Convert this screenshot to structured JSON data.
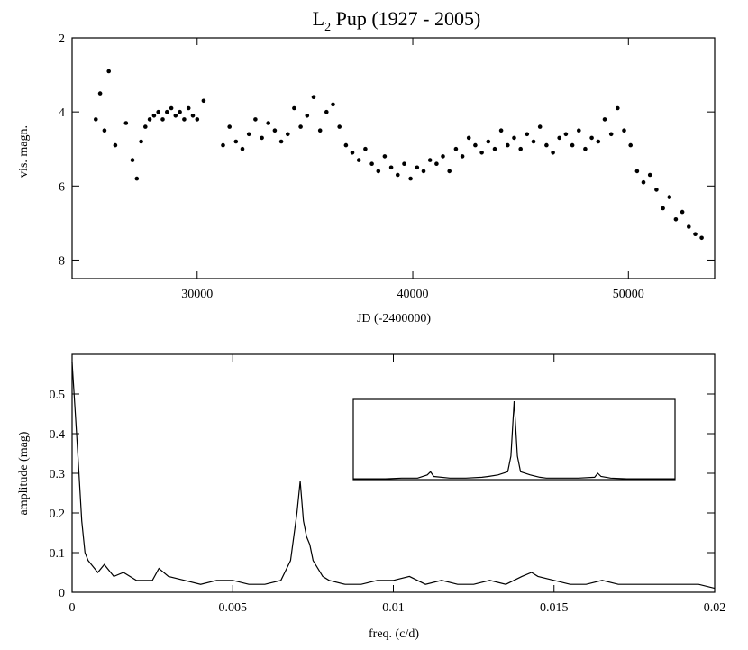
{
  "chart_data": [
    {
      "type": "scatter",
      "title": "L",
      "title_subscript": "2",
      "title_rest": " Pup (1927 - 2005)",
      "xlabel": "JD (-2400000)",
      "ylabel": "vis. magn.",
      "xlim": [
        24200,
        54000
      ],
      "ylim": [
        8.5,
        2.0
      ],
      "y_inverted": true,
      "xticks": [
        30000,
        40000,
        50000
      ],
      "yticks": [
        2,
        4,
        6,
        8
      ],
      "grid": false,
      "marker_color": "#000000",
      "series": [
        {
          "x": [
            25300,
            25500,
            25700,
            25900,
            26200,
            26700,
            27000,
            27200,
            27400,
            27600,
            27800,
            28000,
            28200,
            28400,
            28600,
            28800,
            29000,
            29200,
            29400,
            29600,
            29800,
            30000,
            30300,
            31200,
            31500,
            31800,
            32100,
            32400,
            32700,
            33000,
            33300,
            33600,
            33900,
            34200,
            34500,
            34800,
            35100,
            35400,
            35700,
            36000,
            36300,
            36600,
            36900,
            37200,
            37500,
            37800,
            38100,
            38400,
            38700,
            39000,
            39300,
            39600,
            39900,
            40200,
            40500,
            40800,
            41100,
            41400,
            41700,
            42000,
            42300,
            42600,
            42900,
            43200,
            43500,
            43800,
            44100,
            44400,
            44700,
            45000,
            45300,
            45600,
            45900,
            46200,
            46500,
            46800,
            47100,
            47400,
            47700,
            48000,
            48300,
            48600,
            48900,
            49200,
            49500,
            49800,
            50100,
            50400,
            50700,
            51000,
            51300,
            51600,
            51900,
            52200,
            52500,
            52800,
            53100,
            53400
          ],
          "y": [
            4.2,
            3.5,
            4.5,
            2.9,
            4.9,
            4.3,
            5.3,
            5.8,
            4.8,
            4.4,
            4.2,
            4.1,
            4.0,
            4.2,
            4.0,
            3.9,
            4.1,
            4.0,
            4.2,
            3.9,
            4.1,
            4.2,
            3.7,
            4.9,
            4.4,
            4.8,
            5.0,
            4.6,
            4.2,
            4.7,
            4.3,
            4.5,
            4.8,
            4.6,
            3.9,
            4.4,
            4.1,
            3.6,
            4.5,
            4.0,
            3.8,
            4.4,
            4.9,
            5.1,
            5.3,
            5.0,
            5.4,
            5.6,
            5.2,
            5.5,
            5.7,
            5.4,
            5.8,
            5.5,
            5.6,
            5.3,
            5.4,
            5.2,
            5.6,
            5.0,
            5.2,
            4.7,
            4.9,
            5.1,
            4.8,
            5.0,
            4.5,
            4.9,
            4.7,
            5.0,
            4.6,
            4.8,
            4.4,
            4.9,
            5.1,
            4.7,
            4.6,
            4.9,
            4.5,
            5.0,
            4.7,
            4.8,
            4.2,
            4.6,
            3.9,
            4.5,
            4.9,
            5.6,
            5.9,
            5.7,
            6.1,
            6.6,
            6.3,
            6.9,
            6.7,
            7.1,
            7.3,
            7.4
          ]
        }
      ]
    },
    {
      "type": "line",
      "xlabel": "freq. (c/d)",
      "ylabel": "amplitude (mag)",
      "xlim": [
        0,
        0.02
      ],
      "ylim": [
        0,
        0.6
      ],
      "xticks": [
        0,
        0.005,
        0.01,
        0.015,
        0.02
      ],
      "xtick_labels": [
        "0",
        "0.005",
        "0.01",
        "0.015",
        "0.02"
      ],
      "yticks": [
        0,
        0.1,
        0.2,
        0.3,
        0.4,
        0.5
      ],
      "ytick_labels": [
        "0",
        "0.1",
        "0.2",
        "0.3",
        "0.4",
        "0.5"
      ],
      "grid": false,
      "line_color": "#000000",
      "series": [
        {
          "x": [
            0,
            0.0001,
            0.0002,
            0.0003,
            0.0004,
            0.0005,
            0.0006,
            0.0008,
            0.001,
            0.0013,
            0.0016,
            0.002,
            0.0025,
            0.0027,
            0.003,
            0.0035,
            0.004,
            0.0045,
            0.005,
            0.0055,
            0.006,
            0.0065,
            0.0068,
            0.007,
            0.0071,
            0.0072,
            0.0073,
            0.0074,
            0.0075,
            0.0078,
            0.008,
            0.0085,
            0.009,
            0.0095,
            0.01,
            0.0105,
            0.011,
            0.0115,
            0.012,
            0.0125,
            0.013,
            0.0135,
            0.014,
            0.0143,
            0.0145,
            0.015,
            0.0155,
            0.016,
            0.0165,
            0.017,
            0.0175,
            0.018,
            0.0185,
            0.019,
            0.0195,
            0.02
          ],
          "y": [
            0.58,
            0.45,
            0.32,
            0.18,
            0.1,
            0.08,
            0.07,
            0.05,
            0.07,
            0.04,
            0.05,
            0.03,
            0.03,
            0.06,
            0.04,
            0.03,
            0.02,
            0.03,
            0.03,
            0.02,
            0.02,
            0.03,
            0.08,
            0.2,
            0.28,
            0.18,
            0.14,
            0.12,
            0.08,
            0.04,
            0.03,
            0.02,
            0.02,
            0.03,
            0.03,
            0.04,
            0.02,
            0.03,
            0.02,
            0.02,
            0.03,
            0.02,
            0.04,
            0.05,
            0.04,
            0.03,
            0.02,
            0.02,
            0.03,
            0.02,
            0.02,
            0.02,
            0.02,
            0.02,
            0.02,
            0.01
          ]
        }
      ],
      "inset": {
        "x": [
          0,
          0.05,
          0.1,
          0.15,
          0.2,
          0.23,
          0.24,
          0.25,
          0.3,
          0.35,
          0.4,
          0.42,
          0.45,
          0.48,
          0.49,
          0.5,
          0.51,
          0.52,
          0.55,
          0.58,
          0.6,
          0.65,
          0.7,
          0.75,
          0.76,
          0.77,
          0.8,
          0.85,
          0.9,
          0.95,
          1.0
        ],
        "y": [
          0.01,
          0.01,
          0.01,
          0.02,
          0.02,
          0.06,
          0.1,
          0.04,
          0.02,
          0.02,
          0.03,
          0.04,
          0.06,
          0.1,
          0.3,
          1.0,
          0.3,
          0.1,
          0.06,
          0.03,
          0.02,
          0.02,
          0.02,
          0.03,
          0.08,
          0.04,
          0.02,
          0.01,
          0.01,
          0.01,
          0.01
        ]
      }
    }
  ]
}
